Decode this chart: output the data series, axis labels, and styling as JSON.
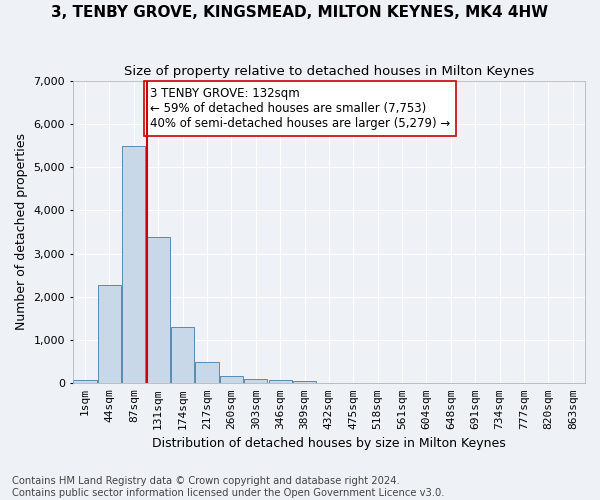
{
  "title": "3, TENBY GROVE, KINGSMEAD, MILTON KEYNES, MK4 4HW",
  "subtitle": "Size of property relative to detached houses in Milton Keynes",
  "xlabel": "Distribution of detached houses by size in Milton Keynes",
  "ylabel": "Number of detached properties",
  "footer_line1": "Contains HM Land Registry data © Crown copyright and database right 2024.",
  "footer_line2": "Contains public sector information licensed under the Open Government Licence v3.0.",
  "bin_labels": [
    "1sqm",
    "44sqm",
    "87sqm",
    "131sqm",
    "174sqm",
    "217sqm",
    "260sqm",
    "303sqm",
    "346sqm",
    "389sqm",
    "432sqm",
    "475sqm",
    "518sqm",
    "561sqm",
    "604sqm",
    "648sqm",
    "691sqm",
    "734sqm",
    "777sqm",
    "820sqm",
    "863sqm"
  ],
  "bar_values": [
    75,
    2270,
    5480,
    3380,
    1310,
    490,
    175,
    90,
    65,
    60,
    0,
    0,
    0,
    0,
    0,
    0,
    0,
    0,
    0,
    0,
    0
  ],
  "bar_color": "#c8d8e8",
  "bar_edgecolor": "#5a8ab0",
  "property_bin_index": 3,
  "vline_color": "#cc0000",
  "annotation_text": "3 TENBY GROVE: 132sqm\n← 59% of detached houses are smaller (7,753)\n40% of semi-detached houses are larger (5,279) →",
  "annotation_box_color": "#ffffff",
  "annotation_box_edgecolor": "#cc0000",
  "ylim": [
    0,
    7000
  ],
  "background_color": "#eef2f7",
  "grid_color": "#ffffff",
  "title_fontsize": 11,
  "subtitle_fontsize": 9.5,
  "axis_label_fontsize": 9,
  "tick_fontsize": 8,
  "annotation_fontsize": 8.5,
  "footer_fontsize": 7.2
}
